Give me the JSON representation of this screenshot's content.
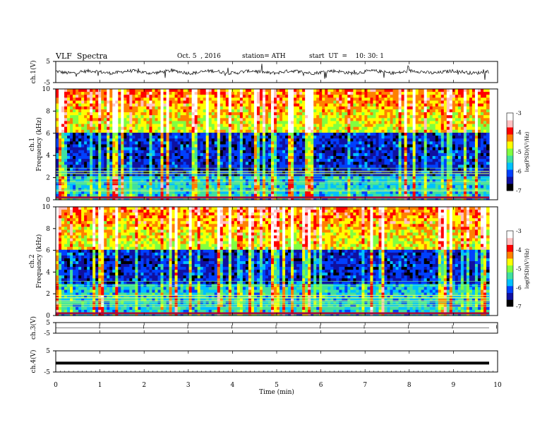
{
  "header": {
    "title": "VLF  Spectra",
    "date": "Oct. 5  , 2016",
    "station": "station= ATH",
    "start": "start  UT  =    10: 30: 1"
  },
  "chart_data": {
    "type": "heatmap",
    "xlabel": "Time  (min)",
    "xlim": [
      0,
      10
    ],
    "xticks": [
      "0",
      "1",
      "2",
      "3",
      "4",
      "5",
      "6",
      "7",
      "8",
      "9",
      "10"
    ],
    "data_end_min": 9.8,
    "panels": [
      {
        "name": "ch1-waveform",
        "type": "line",
        "ylabel": "ch.1(V)",
        "ylim": [
          -5,
          5
        ],
        "yticks": [
          "5",
          "-5"
        ],
        "baseline": 0.0
      },
      {
        "name": "ch1-spectrogram",
        "type": "heatmap",
        "ylabel_channel": "ch.1",
        "ylabel": "Frequency  (kHz)",
        "ylim": [
          0,
          10
        ],
        "yticks": [
          "0",
          "2",
          "4",
          "6",
          "8",
          "10"
        ],
        "quiet_band_khz": [
          2.0,
          6.0
        ],
        "strong_line_khz": 0.2
      },
      {
        "name": "ch2-spectrogram",
        "type": "heatmap",
        "ylabel_channel": "ch.2",
        "ylabel": "Frequency  (kHz)",
        "ylim": [
          0,
          10
        ],
        "yticks": [
          "0",
          "2",
          "4",
          "6",
          "8",
          "10"
        ],
        "quiet_band_khz": [
          3.0,
          6.0
        ],
        "strong_line_khz": 0.2
      },
      {
        "name": "ch3-waveform",
        "type": "line",
        "ylabel": "ch.3(V)",
        "ylim": [
          -5,
          5
        ],
        "yticks": [
          "5",
          "-5"
        ],
        "baseline": 0.0
      },
      {
        "name": "ch4-waveform",
        "type": "line",
        "ylabel": "ch.4(V)",
        "ylim": [
          -5,
          5
        ],
        "yticks": [
          "5",
          "-5"
        ],
        "baseline": -0.8
      }
    ],
    "colorbar": {
      "label": "log(PSD)(V²/Hz)",
      "range": [
        -7,
        -3
      ],
      "ticks": [
        "-3",
        "-4",
        "-5",
        "-6",
        "-7"
      ],
      "colors": [
        "#000000",
        "#1010a0",
        "#0040ff",
        "#00c0ff",
        "#40e0a0",
        "#80ff40",
        "#ffff00",
        "#ff8000",
        "#ff0000",
        "#ffc0c0",
        "#ffffff"
      ]
    }
  }
}
